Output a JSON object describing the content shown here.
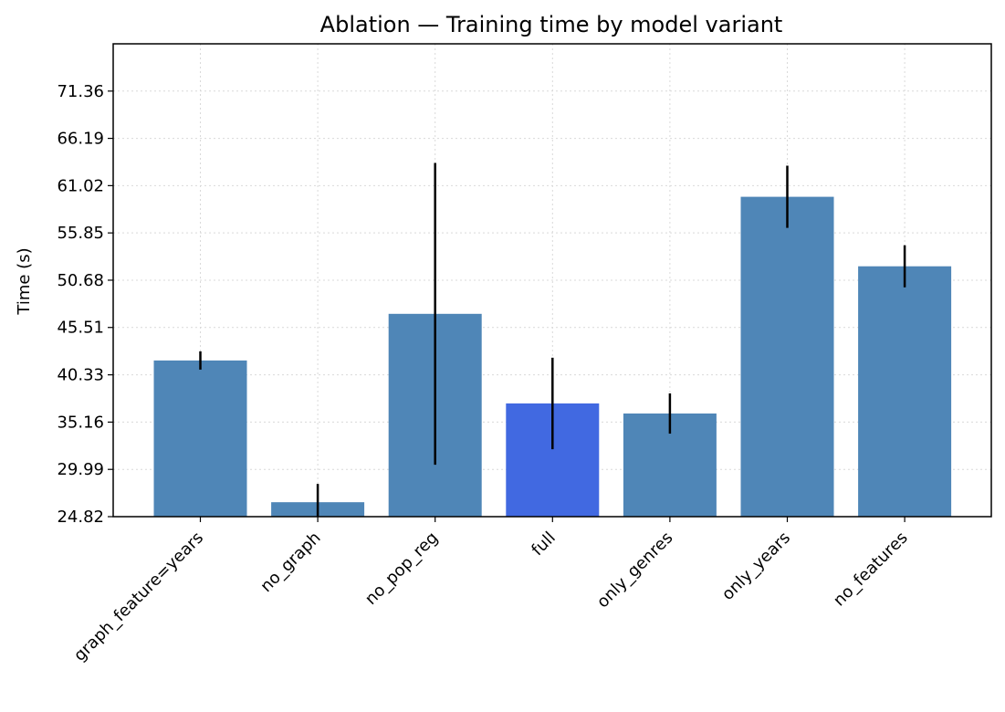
{
  "chart_data": {
    "type": "bar",
    "title": "Ablation — Training time by model variant",
    "xlabel": "",
    "ylabel": "Time (s)",
    "categories": [
      "graph_feature=years",
      "no_graph",
      "no_pop_reg",
      "full",
      "only_genres",
      "only_years",
      "no_features"
    ],
    "values": [
      41.9,
      26.4,
      47.0,
      37.2,
      36.1,
      59.8,
      52.2
    ],
    "error": [
      1.0,
      2.0,
      16.5,
      5.0,
      2.2,
      3.4,
      2.3
    ],
    "highlight_category": "full",
    "ylim": [
      24.82,
      76.53
    ],
    "yticks": [
      "24.82",
      "29.99",
      "35.16",
      "40.33",
      "45.51",
      "50.68",
      "55.85",
      "61.02",
      "66.19",
      "71.36"
    ],
    "grid": true,
    "colors": {
      "bar": "#4f86b7",
      "highlight": "#4169e1",
      "error": "#000000"
    }
  }
}
